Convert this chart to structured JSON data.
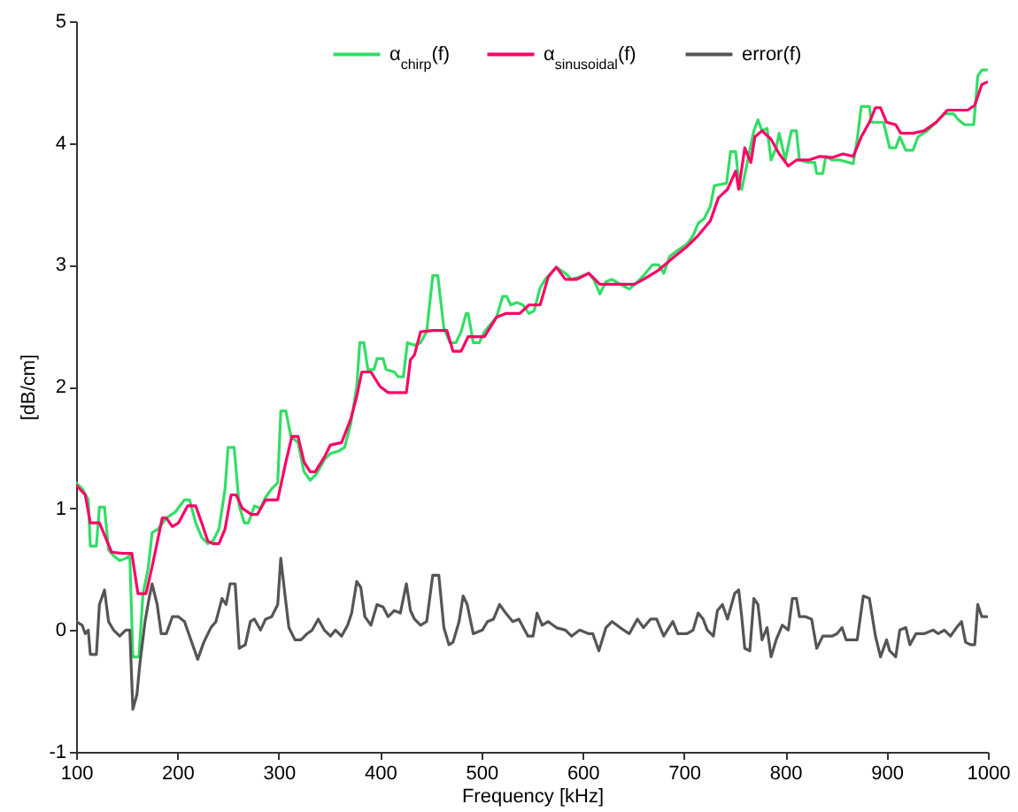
{
  "chart_data": {
    "type": "line",
    "xlabel": "Frequency [kHz]",
    "ylabel": "[dB/cm]",
    "xlim": [
      100,
      1000
    ],
    "ylim": [
      -1,
      5
    ],
    "xticks": [
      100,
      200,
      300,
      400,
      500,
      600,
      700,
      800,
      900,
      1000
    ],
    "yticks": [
      -1,
      0,
      1,
      2,
      3,
      4,
      5
    ],
    "grid": false,
    "legend": "top",
    "series": [
      {
        "name": "α$_{chirp}$(f)",
        "color": "#33dd66",
        "x": [
          100,
          106,
          112,
          114,
          120,
          123,
          128,
          132,
          137,
          143,
          149,
          153,
          156,
          162,
          166,
          171,
          175,
          181,
          189,
          198,
          207,
          212,
          218,
          224,
          230,
          235,
          241,
          247,
          250,
          256,
          261,
          266,
          270,
          276,
          282,
          287,
          293,
          299,
          302,
          307,
          312,
          319,
          325,
          331,
          337,
          345,
          351,
          359,
          365,
          371,
          377,
          380,
          384,
          388,
          394,
          397,
          403,
          406,
          414,
          418,
          423,
          427,
          434,
          440,
          446,
          452,
          457,
          463,
          469,
          475,
          480,
          485,
          487,
          492,
          498,
          503,
          515,
          521,
          525,
          529,
          535,
          541,
          547,
          552,
          558,
          563,
          574,
          583,
          589,
          597,
          606,
          611,
          617,
          623,
          629,
          637,
          646,
          654,
          660,
          669,
          675,
          680,
          686,
          694,
          703,
          709,
          714,
          720,
          726,
          730,
          736,
          742,
          746,
          751,
          754,
          757,
          763,
          769,
          773,
          777,
          782,
          786,
          791,
          794,
          800,
          806,
          811,
          814,
          823,
          829,
          831,
          837,
          840,
          846,
          854,
          863,
          867,
          871,
          875,
          883,
          885,
          891,
          897,
          903,
          909,
          913,
          919,
          926,
          931,
          940,
          949,
          957,
          966,
          971,
          977,
          986,
          990,
          994,
          999
        ],
        "values": [
          1.21,
          1.16,
          1.07,
          0.69,
          0.69,
          1.01,
          1.01,
          0.66,
          0.61,
          0.57,
          0.59,
          0.61,
          -0.22,
          -0.22,
          0.3,
          0.5,
          0.8,
          0.83,
          0.92,
          0.97,
          1.07,
          1.07,
          0.88,
          0.76,
          0.71,
          0.73,
          0.83,
          1.16,
          1.5,
          1.5,
          1.02,
          0.88,
          0.88,
          1.02,
          1.0,
          1.09,
          1.16,
          1.21,
          1.8,
          1.8,
          1.59,
          1.54,
          1.3,
          1.23,
          1.28,
          1.4,
          1.45,
          1.47,
          1.5,
          1.69,
          2.0,
          2.36,
          2.36,
          2.14,
          2.14,
          2.23,
          2.23,
          2.14,
          2.12,
          2.08,
          2.08,
          2.36,
          2.34,
          2.36,
          2.45,
          2.91,
          2.91,
          2.48,
          2.36,
          2.36,
          2.45,
          2.6,
          2.6,
          2.36,
          2.36,
          2.45,
          2.57,
          2.74,
          2.74,
          2.67,
          2.69,
          2.67,
          2.6,
          2.62,
          2.81,
          2.88,
          2.98,
          2.93,
          2.88,
          2.9,
          2.93,
          2.88,
          2.76,
          2.86,
          2.88,
          2.84,
          2.8,
          2.86,
          2.91,
          3.0,
          3.0,
          2.93,
          3.07,
          3.12,
          3.17,
          3.24,
          3.34,
          3.38,
          3.48,
          3.65,
          3.66,
          3.67,
          3.93,
          3.93,
          3.69,
          3.62,
          3.86,
          4.1,
          4.19,
          4.1,
          4.12,
          3.86,
          3.96,
          4.08,
          3.86,
          4.1,
          4.1,
          3.86,
          3.84,
          3.84,
          3.75,
          3.75,
          3.89,
          3.86,
          3.86,
          3.84,
          3.83,
          4.03,
          4.3,
          4.3,
          4.17,
          4.17,
          4.17,
          3.96,
          3.96,
          4.05,
          3.94,
          3.94,
          4.05,
          4.1,
          4.17,
          4.24,
          4.24,
          4.19,
          4.15,
          4.15,
          4.55,
          4.6,
          4.6
        ]
      },
      {
        "name": "α$_{sinusoidal}$(f)",
        "color": "#ff0066",
        "x": [
          100,
          109,
          114,
          123,
          129,
          135,
          146,
          155,
          161,
          169,
          175,
          181,
          185,
          189,
          195,
          201,
          210,
          218,
          224,
          230,
          235,
          241,
          247,
          253,
          258,
          264,
          273,
          279,
          287,
          299,
          307,
          313,
          319,
          325,
          331,
          336,
          345,
          351,
          362,
          371,
          377,
          382,
          391,
          400,
          408,
          426,
          430,
          434,
          440,
          452,
          466,
          472,
          480,
          487,
          503,
          515,
          524,
          538,
          547,
          558,
          566,
          574,
          583,
          594,
          606,
          617,
          640,
          651,
          660,
          674,
          691,
          703,
          714,
          726,
          734,
          743,
          751,
          754,
          760,
          766,
          770,
          777,
          786,
          794,
          803,
          811,
          823,
          834,
          846,
          857,
          867,
          875,
          883,
          889,
          894,
          900,
          909,
          914,
          926,
          937,
          949,
          960,
          969,
          980,
          987,
          994,
          999
        ],
        "values": [
          1.19,
          1.11,
          0.88,
          0.88,
          0.76,
          0.64,
          0.63,
          0.63,
          0.3,
          0.3,
          0.52,
          0.76,
          0.92,
          0.92,
          0.85,
          0.88,
          1.02,
          1.02,
          0.88,
          0.73,
          0.71,
          0.71,
          0.83,
          1.11,
          1.11,
          1.0,
          0.95,
          0.95,
          1.07,
          1.07,
          1.38,
          1.59,
          1.59,
          1.38,
          1.3,
          1.3,
          1.42,
          1.52,
          1.54,
          1.73,
          1.92,
          2.12,
          2.12,
          2.0,
          1.95,
          1.95,
          2.22,
          2.26,
          2.45,
          2.46,
          2.46,
          2.29,
          2.29,
          2.41,
          2.41,
          2.57,
          2.6,
          2.6,
          2.67,
          2.67,
          2.9,
          2.98,
          2.88,
          2.88,
          2.93,
          2.84,
          2.84,
          2.84,
          2.88,
          2.95,
          3.07,
          3.15,
          3.24,
          3.36,
          3.55,
          3.62,
          3.77,
          3.62,
          3.96,
          3.84,
          4.05,
          4.1,
          4.03,
          3.91,
          3.81,
          3.86,
          3.86,
          3.89,
          3.88,
          3.91,
          3.89,
          4.05,
          4.17,
          4.29,
          4.29,
          4.17,
          4.15,
          4.08,
          4.08,
          4.1,
          4.17,
          4.27,
          4.27,
          4.27,
          4.31,
          4.48,
          4.5
        ]
      },
      {
        "name": "error(f)",
        "color": "#555555",
        "x": [
          100,
          106,
          109,
          112,
          114,
          120,
          123,
          128,
          132,
          137,
          143,
          149,
          153,
          156,
          160,
          163,
          168,
          172,
          175,
          180,
          184,
          189,
          195,
          201,
          207,
          212,
          220,
          226,
          233,
          238,
          244,
          248,
          252,
          257,
          261,
          267,
          272,
          276,
          282,
          287,
          293,
          299,
          302,
          306,
          310,
          316,
          322,
          328,
          333,
          339,
          345,
          351,
          356,
          362,
          368,
          372,
          377,
          381,
          385,
          391,
          397,
          403,
          408,
          414,
          420,
          426,
          430,
          434,
          440,
          446,
          452,
          458,
          463,
          468,
          472,
          478,
          482,
          486,
          492,
          501,
          506,
          512,
          518,
          524,
          531,
          537,
          546,
          551,
          555,
          560,
          566,
          574,
          583,
          589,
          597,
          606,
          610,
          616,
          623,
          629,
          637,
          646,
          654,
          660,
          667,
          673,
          680,
          689,
          694,
          703,
          709,
          714,
          719,
          723,
          729,
          733,
          738,
          743,
          747,
          750,
          754,
          757,
          760,
          765,
          769,
          773,
          777,
          782,
          786,
          791,
          797,
          803,
          807,
          811,
          814,
          820,
          826,
          831,
          837,
          846,
          851,
          856,
          860,
          866,
          871,
          877,
          883,
          889,
          894,
          900,
          903,
          909,
          913,
          919,
          923,
          929,
          937,
          946,
          951,
          957,
          963,
          969,
          974,
          978,
          983,
          987,
          990,
          994,
          999
        ],
        "values": [
          0.07,
          0.04,
          -0.03,
          0,
          -0.2,
          -0.2,
          0.21,
          0.33,
          0.07,
          0,
          -0.05,
          0,
          0,
          -0.65,
          -0.53,
          -0.27,
          0.07,
          0.26,
          0.38,
          0.21,
          -0.03,
          -0.03,
          0.11,
          0.11,
          0.07,
          -0.05,
          -0.24,
          -0.1,
          0.02,
          0.07,
          0.26,
          0.21,
          0.38,
          0.38,
          -0.15,
          -0.12,
          0.07,
          0.09,
          0,
          0.09,
          0.11,
          0.21,
          0.59,
          0.3,
          0.02,
          -0.08,
          -0.08,
          -0.03,
          0,
          0.09,
          0,
          -0.05,
          0,
          -0.05,
          0.04,
          0.14,
          0.4,
          0.35,
          0.11,
          0.04,
          0.21,
          0.19,
          0.11,
          0.16,
          0.14,
          0.38,
          0.16,
          0.09,
          0.04,
          0.07,
          0.45,
          0.45,
          0.02,
          -0.12,
          -0.1,
          0.07,
          0.28,
          0.21,
          -0.03,
          0,
          0.07,
          0.09,
          0.21,
          0.14,
          0.07,
          0.09,
          -0.05,
          -0.05,
          0.14,
          0.04,
          0.07,
          0.02,
          0,
          -0.05,
          0,
          -0.03,
          -0.03,
          -0.17,
          0.02,
          0.07,
          0.02,
          -0.03,
          0.09,
          0.02,
          0.09,
          0.09,
          -0.05,
          0.07,
          -0.03,
          -0.03,
          0,
          0.14,
          0.09,
          0,
          -0.05,
          0.16,
          0.21,
          0.09,
          0.21,
          0.3,
          0.33,
          0.11,
          -0.15,
          -0.17,
          0.26,
          0.21,
          -0.08,
          0.02,
          -0.22,
          -0.08,
          0.04,
          0,
          0.26,
          0.26,
          0.11,
          0.11,
          0.09,
          -0.15,
          -0.05,
          -0.05,
          -0.03,
          0.02,
          -0.08,
          -0.08,
          -0.08,
          0.28,
          0.26,
          -0.05,
          -0.22,
          -0.08,
          -0.17,
          -0.22,
          0,
          0.02,
          -0.12,
          -0.03,
          -0.03,
          0,
          -0.03,
          0,
          -0.05,
          0.02,
          0.07,
          -0.1,
          -0.12,
          -0.12,
          0.21,
          0.11,
          0.11
        ]
      }
    ]
  }
}
